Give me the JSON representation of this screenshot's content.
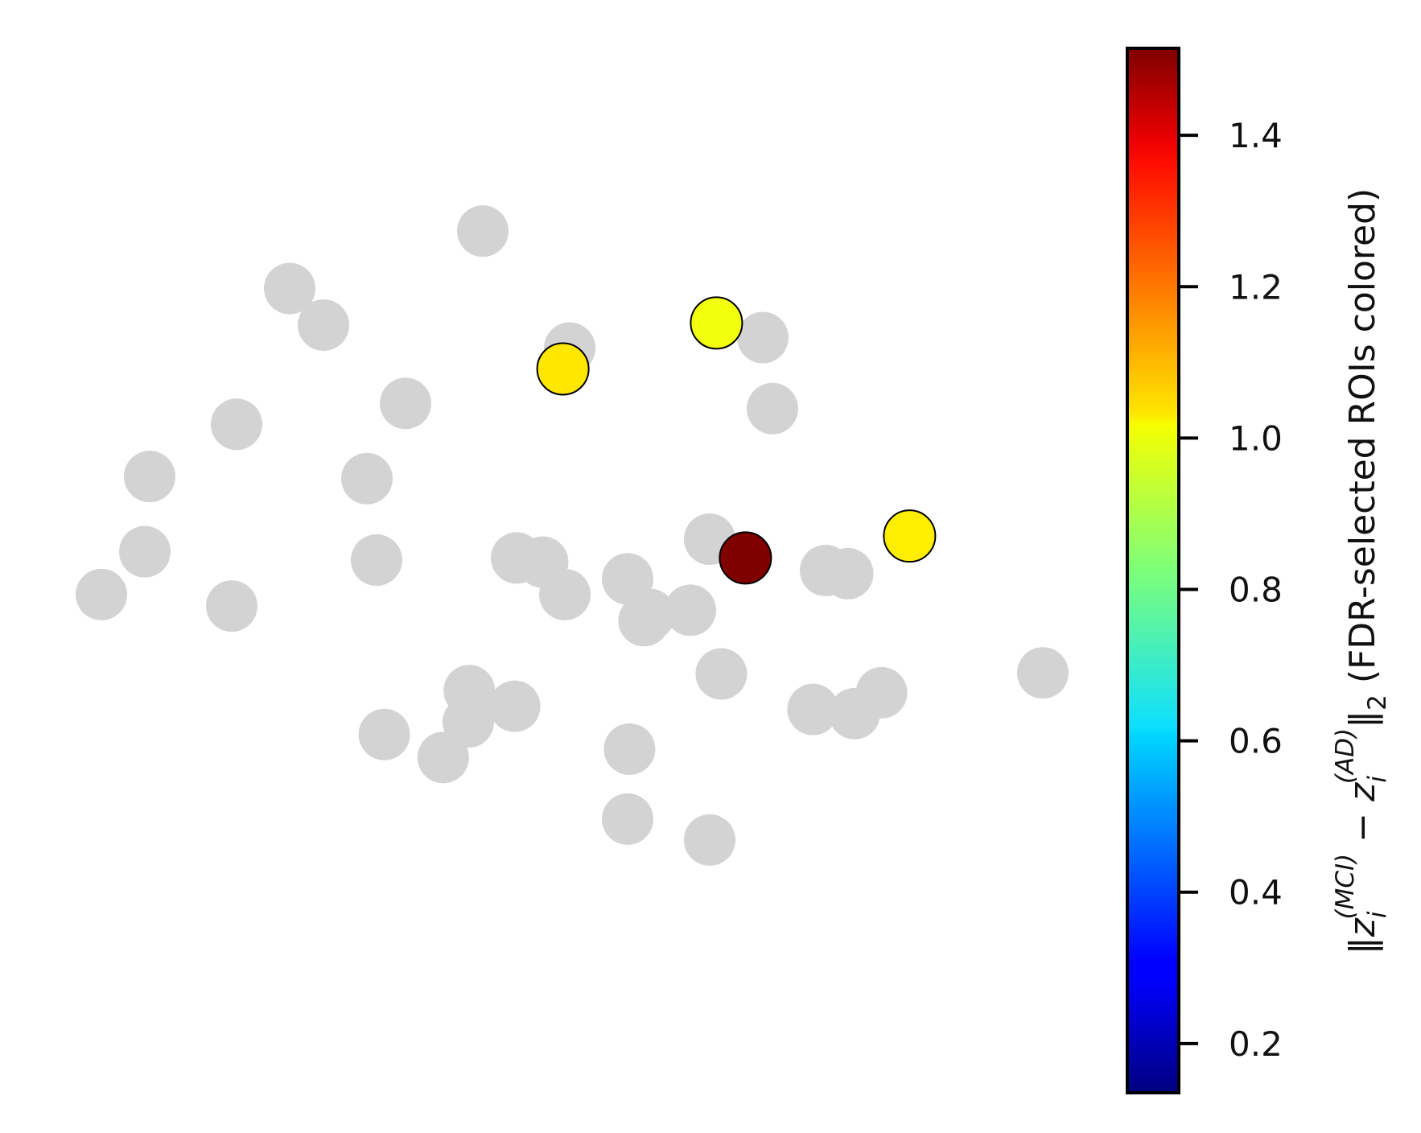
{
  "chart_data": {
    "type": "scatter",
    "title": "",
    "xlabel": "",
    "ylabel": "",
    "axes_visible": false,
    "grid": false,
    "background_point_color": "#d3d3d3",
    "background_points": [
      {
        "x": 0.475,
        "y": 0.825
      },
      {
        "x": 0.275,
        "y": 0.77
      },
      {
        "x": 0.31,
        "y": 0.735
      },
      {
        "x": 0.565,
        "y": 0.713
      },
      {
        "x": 0.765,
        "y": 0.723
      },
      {
        "x": 0.395,
        "y": 0.66
      },
      {
        "x": 0.22,
        "y": 0.64
      },
      {
        "x": 0.13,
        "y": 0.59
      },
      {
        "x": 0.355,
        "y": 0.588
      },
      {
        "x": 0.775,
        "y": 0.655
      },
      {
        "x": 0.125,
        "y": 0.518
      },
      {
        "x": 0.08,
        "y": 0.477
      },
      {
        "x": 0.215,
        "y": 0.466
      },
      {
        "x": 0.365,
        "y": 0.51
      },
      {
        "x": 0.51,
        "y": 0.512
      },
      {
        "x": 0.537,
        "y": 0.508
      },
      {
        "x": 0.625,
        "y": 0.492
      },
      {
        "x": 0.648,
        "y": 0.458
      },
      {
        "x": 0.69,
        "y": 0.462
      },
      {
        "x": 0.71,
        "y": 0.53
      },
      {
        "x": 0.56,
        "y": 0.477
      },
      {
        "x": 0.642,
        "y": 0.452
      },
      {
        "x": 0.83,
        "y": 0.5
      },
      {
        "x": 0.853,
        "y": 0.497
      },
      {
        "x": 0.461,
        "y": 0.385
      },
      {
        "x": 0.46,
        "y": 0.355
      },
      {
        "x": 0.508,
        "y": 0.37
      },
      {
        "x": 0.373,
        "y": 0.343
      },
      {
        "x": 0.434,
        "y": 0.321
      },
      {
        "x": 0.627,
        "y": 0.329
      },
      {
        "x": 0.722,
        "y": 0.401
      },
      {
        "x": 0.817,
        "y": 0.367
      },
      {
        "x": 0.86,
        "y": 0.363
      },
      {
        "x": 0.888,
        "y": 0.383
      },
      {
        "x": 1.055,
        "y": 0.402
      },
      {
        "x": 0.625,
        "y": 0.262
      },
      {
        "x": 0.71,
        "y": 0.242
      }
    ],
    "highlighted_points": [
      {
        "x": 0.558,
        "y": 0.693,
        "value": 1.03
      },
      {
        "x": 0.717,
        "y": 0.737,
        "value": 0.98
      },
      {
        "x": 0.917,
        "y": 0.533,
        "value": 1.02
      },
      {
        "x": 0.747,
        "y": 0.512,
        "value": 1.52
      }
    ],
    "colorbar": {
      "colormap": "jet",
      "vmin": 0.135,
      "vmax": 1.515,
      "ticks": [
        {
          "value": 0.2,
          "label": "0.2"
        },
        {
          "value": 0.4,
          "label": "0.4"
        },
        {
          "value": 0.6,
          "label": "0.6"
        },
        {
          "value": 0.8,
          "label": "0.8"
        },
        {
          "value": 1.0,
          "label": "1.0"
        },
        {
          "value": 1.2,
          "label": "1.2"
        },
        {
          "value": 1.4,
          "label": "1.4"
        }
      ],
      "label": {
        "norm_open": "‖",
        "z1": "z",
        "sub1": "i",
        "sup1": "(MCI)",
        "minus": " − ",
        "z2": "z",
        "sub2": "i",
        "sup2": "(AD)",
        "norm_close": "‖",
        "norm_sub": "2",
        "suffix": " (FDR-selected ROIs colored)"
      }
    }
  }
}
